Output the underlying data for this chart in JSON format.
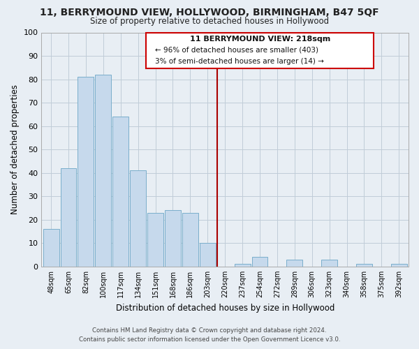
{
  "title": "11, BERRYMOUND VIEW, HOLLYWOOD, BIRMINGHAM, B47 5QF",
  "subtitle": "Size of property relative to detached houses in Hollywood",
  "xlabel": "Distribution of detached houses by size in Hollywood",
  "ylabel": "Number of detached properties",
  "categories": [
    "48sqm",
    "65sqm",
    "82sqm",
    "100sqm",
    "117sqm",
    "134sqm",
    "151sqm",
    "168sqm",
    "186sqm",
    "203sqm",
    "220sqm",
    "237sqm",
    "254sqm",
    "272sqm",
    "289sqm",
    "306sqm",
    "323sqm",
    "340sqm",
    "358sqm",
    "375sqm",
    "392sqm"
  ],
  "values": [
    16,
    42,
    81,
    82,
    64,
    41,
    23,
    24,
    23,
    10,
    0,
    1,
    4,
    0,
    3,
    0,
    3,
    0,
    1,
    0,
    1
  ],
  "bar_color": "#c6d9ec",
  "bar_edge_color": "#7aaecb",
  "vline_x_index": 10,
  "vline_color": "#aa0000",
  "ylim": [
    0,
    100
  ],
  "yticks": [
    0,
    10,
    20,
    30,
    40,
    50,
    60,
    70,
    80,
    90,
    100
  ],
  "annotation_title": "11 BERRYMOUND VIEW: 218sqm",
  "annotation_line1": "← 96% of detached houses are smaller (403)",
  "annotation_line2": "3% of semi-detached houses are larger (14) →",
  "footer_line1": "Contains HM Land Registry data © Crown copyright and database right 2024.",
  "footer_line2": "Contains public sector information licensed under the Open Government Licence v3.0.",
  "background_color": "#e8eef4",
  "plot_background": "#e8eef4",
  "grid_color": "#c0ccd8"
}
